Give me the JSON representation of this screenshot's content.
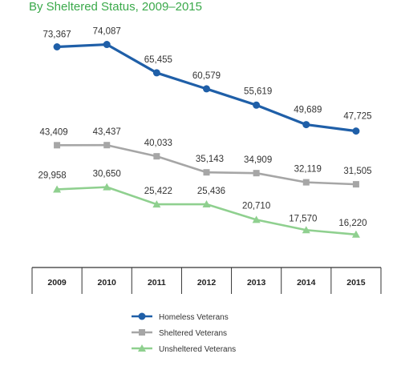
{
  "chart_data": {
    "type": "line",
    "title": "By Sheltered Status, 2009–2015",
    "xlabel": "",
    "ylabel": "",
    "x": [
      "2009",
      "2010",
      "2011",
      "2012",
      "2013",
      "2014",
      "2015"
    ],
    "ylim": [
      0,
      80000
    ],
    "grid": false,
    "legend_placement": "bottom",
    "series": [
      {
        "name": "Homeless Veterans",
        "color": "#1f5fa8",
        "marker": "circle",
        "values": [
          73367,
          74087,
          65455,
          60579,
          55619,
          49689,
          47725
        ],
        "labels": [
          "73,367",
          "74,087",
          "65,455",
          "60,579",
          "55,619",
          "49,689",
          "47,725"
        ]
      },
      {
        "name": "Sheltered Veterans",
        "color": "#a6a6a6",
        "marker": "square",
        "values": [
          43409,
          43437,
          40033,
          35143,
          34909,
          32119,
          31505
        ],
        "labels": [
          "43,409",
          "43,437",
          "40,033",
          "35,143",
          "34,909",
          "32,119",
          "31,505"
        ]
      },
      {
        "name": "Unsheltered Veterans",
        "color": "#8fd08f",
        "marker": "triangle",
        "values": [
          29958,
          30650,
          25422,
          25436,
          20710,
          17570,
          16220
        ],
        "labels": [
          "29,958",
          "30,650",
          "25,422",
          "25,436",
          "20,710",
          "17,570",
          "16,220"
        ]
      }
    ]
  }
}
